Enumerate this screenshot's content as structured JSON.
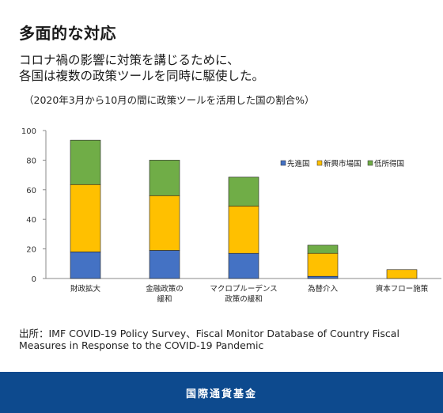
{
  "header": {
    "title": "多面的な対応",
    "lead_line1": "コロナ禍の影響に対策を講じるために、",
    "lead_line2": "各国は複数の政策ツールを同時に駆使した。",
    "note": "（2020年3月から10月の間に政策ツールを活用した国の割合%）"
  },
  "chart_data": {
    "type": "bar",
    "stacked": true,
    "categories": [
      [
        "財政拡大"
      ],
      [
        "金融政策の",
        "緩和"
      ],
      [
        "マクロプルーデンス",
        "政策の緩和"
      ],
      [
        "為替介入"
      ],
      [
        "資本フロー施策"
      ]
    ],
    "series": [
      {
        "name": "先進国",
        "color": "#4472c4",
        "values": [
          18,
          19,
          17,
          1.5,
          0
        ]
      },
      {
        "name": "新興市場国",
        "color": "#ffc000",
        "values": [
          45.5,
          37,
          32,
          15.5,
          6
        ]
      },
      {
        "name": "低所得国",
        "color": "#70ad47",
        "values": [
          30,
          24,
          19.5,
          5.5,
          0
        ]
      }
    ],
    "yticks": [
      "0",
      "20",
      "40",
      "60",
      "80",
      "100"
    ],
    "ylim": [
      0,
      100
    ],
    "legend_position": "right",
    "grid": false
  },
  "source": "出所：IMF COVID-19 Policy Survey、Fiscal Monitor Database of Country Fiscal Measures in Response to the COVID-19 Pandemic",
  "footer": {
    "label": "国際通貨基金"
  }
}
